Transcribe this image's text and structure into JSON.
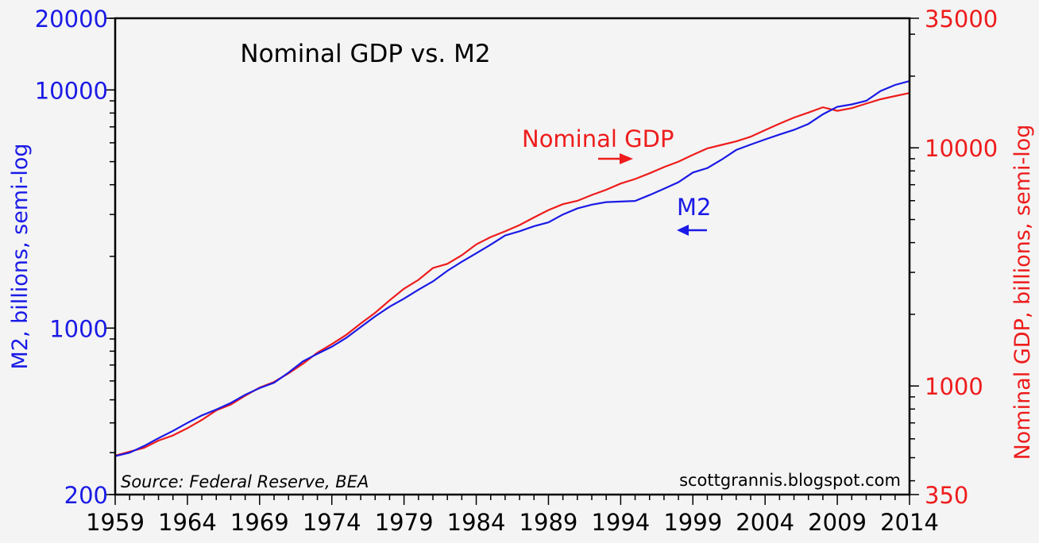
{
  "chart_data": {
    "type": "line",
    "title": "Nominal GDP vs. M2",
    "ylabel_left": "M2, billions, semi-log",
    "ylabel_right": "Nominal GDP, billions, semi-log",
    "source": "Source:  Federal Reserve, BEA",
    "credit": "scottgrannis.blogspot.com",
    "x_ticks": [
      "1959",
      "1964",
      "1969",
      "1974",
      "1979",
      "1984",
      "1989",
      "1994",
      "1999",
      "2004",
      "2009",
      "2014"
    ],
    "xlim": [
      1959,
      2014
    ],
    "y_left": {
      "scale": "log",
      "range": [
        200,
        20000
      ],
      "tick_labels": [
        "200",
        "1000",
        "10000",
        "20000"
      ],
      "color": "#1a1ae6"
    },
    "y_right": {
      "scale": "log",
      "range": [
        350,
        35000
      ],
      "tick_labels": [
        "350",
        "1000",
        "10000",
        "35000"
      ],
      "color": "#ee1c1c"
    },
    "grid": false,
    "annotations": [
      {
        "text": "Nominal GDP",
        "arrow": "right",
        "color": "#ee1c1c"
      },
      {
        "text": "M2",
        "arrow": "left",
        "color": "#1a1ae6"
      }
    ],
    "x": [
      1959,
      1960,
      1961,
      1962,
      1963,
      1964,
      1965,
      1966,
      1967,
      1968,
      1969,
      1970,
      1971,
      1972,
      1973,
      1974,
      1975,
      1976,
      1977,
      1978,
      1979,
      1980,
      1981,
      1982,
      1983,
      1984,
      1985,
      1986,
      1987,
      1988,
      1989,
      1990,
      1991,
      1992,
      1993,
      1994,
      1995,
      1996,
      1997,
      1998,
      1999,
      2000,
      2001,
      2002,
      2003,
      2004,
      2005,
      2006,
      2007,
      2008,
      2009,
      2010,
      2011,
      2012,
      2013,
      2014
    ],
    "series": [
      {
        "name": "M2",
        "axis": "left",
        "color": "#1a1ae6",
        "values": [
          290,
          300,
          320,
          345,
          370,
          400,
          430,
          455,
          485,
          525,
          560,
          590,
          650,
          725,
          780,
          835,
          910,
          1010,
          1120,
          1230,
          1330,
          1450,
          1570,
          1740,
          1900,
          2060,
          2240,
          2450,
          2550,
          2680,
          2780,
          3000,
          3180,
          3300,
          3380,
          3400,
          3420,
          3620,
          3850,
          4100,
          4500,
          4700,
          5100,
          5600,
          5900,
          6200,
          6500,
          6800,
          7200,
          7900,
          8500,
          8700,
          9000,
          9900,
          10500,
          10900
        ]
      },
      {
        "name": "Nominal GDP",
        "axis": "right",
        "color": "#ee1c1c",
        "values": [
          510,
          530,
          550,
          590,
          620,
          665,
          720,
          790,
          835,
          910,
          985,
          1040,
          1130,
          1240,
          1380,
          1500,
          1640,
          1830,
          2030,
          2290,
          2560,
          2790,
          3130,
          3260,
          3540,
          3930,
          4220,
          4460,
          4740,
          5100,
          5480,
          5800,
          5990,
          6340,
          6670,
          7080,
          7400,
          7820,
          8300,
          8750,
          9350,
          9950,
          10290,
          10640,
          11140,
          11870,
          12640,
          13400,
          14060,
          14800,
          14300,
          14680,
          15340,
          16000,
          16500,
          17000
        ]
      }
    ]
  }
}
